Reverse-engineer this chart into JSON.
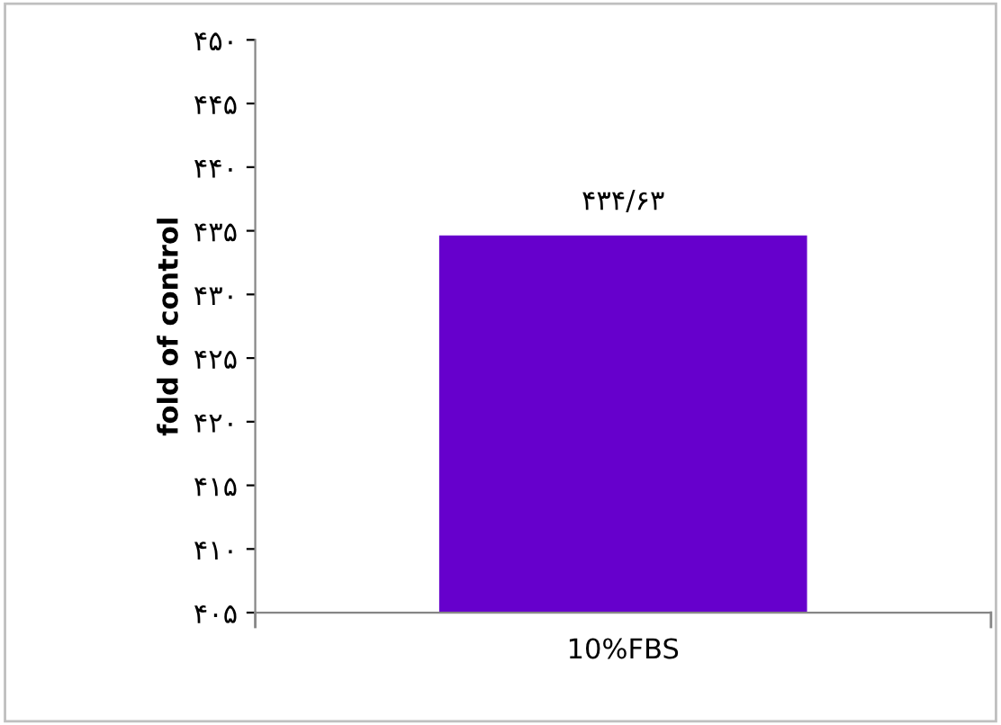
{
  "chart_data": {
    "type": "bar",
    "ylabel": "fold of control",
    "categories": [
      "10%FBS"
    ],
    "values": [
      434.63
    ],
    "value_labels": [
      "۴۳۴/۶۳"
    ],
    "color": "#6600cc",
    "ylim": [
      405,
      450
    ],
    "yticks": [
      {
        "value": 405,
        "label": "۴۰۵"
      },
      {
        "value": 410,
        "label": "۴۱۰"
      },
      {
        "value": 415,
        "label": "۴۱۵"
      },
      {
        "value": 420,
        "label": "۴۲۰"
      },
      {
        "value": 425,
        "label": "۴۲۵"
      },
      {
        "value": 430,
        "label": "۴۳۰"
      },
      {
        "value": 435,
        "label": "۴۳۵"
      },
      {
        "value": 440,
        "label": "۴۴۰"
      },
      {
        "value": 445,
        "label": "۴۴۵"
      },
      {
        "value": 450,
        "label": "۴۵۰"
      }
    ],
    "grid": false,
    "legend": false
  }
}
